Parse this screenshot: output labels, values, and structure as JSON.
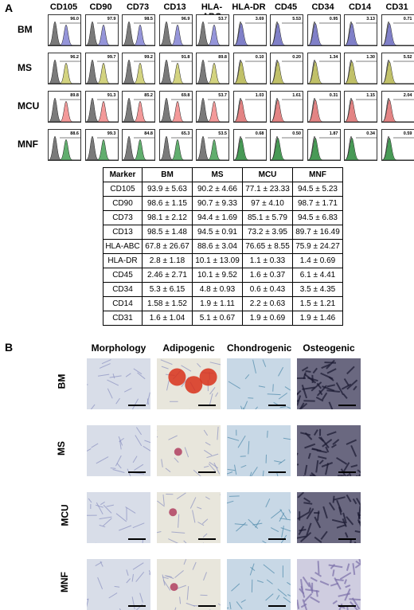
{
  "panel_a": {
    "label": "A",
    "markers": [
      "CD105",
      "CD90",
      "CD73",
      "CD13",
      "HLA-ABC",
      "HLA-DR",
      "CD45",
      "CD34",
      "CD14",
      "CD31"
    ],
    "rows": [
      {
        "name": "BM",
        "color": "#7b7bd0",
        "values": [
          "96.0",
          "97.9",
          "98.5",
          "96.9",
          "53.7",
          "3.69",
          "5.53",
          "0.95",
          "3.13",
          "0.71"
        ]
      },
      {
        "name": "MS",
        "color": "#c8c860",
        "values": [
          "96.2",
          "99.7",
          "99.2",
          "91.8",
          "89.8",
          "0.10",
          "0.20",
          "1.34",
          "1.30",
          "5.52"
        ]
      },
      {
        "name": "MCU",
        "color": "#f08080",
        "values": [
          "89.8",
          "91.3",
          "85.2",
          "69.8",
          "53.7",
          "1.03",
          "1.61",
          "0.31",
          "1.15",
          "2.04"
        ]
      },
      {
        "name": "MNF",
        "color": "#3a9a4a",
        "values": [
          "88.6",
          "99.3",
          "84.8",
          "65.3",
          "53.5",
          "0.68",
          "0.50",
          "1.87",
          "0.34",
          "0.59"
        ]
      }
    ],
    "overlap_markers_from_index": 5
  },
  "table": {
    "headers": [
      "Marker",
      "BM",
      "MS",
      "MCU",
      "MNF"
    ],
    "rows": [
      [
        "CD105",
        "93.9 ± 5.63",
        "90.2 ± 4.66",
        "77.1 ± 23.33",
        "94.5 ± 5.23"
      ],
      [
        "CD90",
        "98.6 ± 1.15",
        "90.7 ± 9.33",
        "97 ± 4.10",
        "98.7 ± 1.71"
      ],
      [
        "CD73",
        "98.1 ± 2.12",
        "94.4 ± 1.69",
        "85.1 ± 5.79",
        "94.5 ± 6.83"
      ],
      [
        "CD13",
        "98.5 ± 1.48",
        "94.5 ± 0.91",
        "73.2 ± 3.95",
        "89.7 ± 16.49"
      ],
      [
        "HLA-ABC",
        "67.8 ± 26.67",
        "88.6 ± 3.04",
        "76.65 ± 8.55",
        "75.9 ± 24.27"
      ],
      [
        "HLA-DR",
        "2.8 ± 1.18",
        "10.1 ± 13.09",
        "1.1 ± 0.33",
        "1.4 ± 0.69"
      ],
      [
        "CD45",
        "2.46 ± 2.71",
        "10.1 ± 9.52",
        "1.6 ± 0.37",
        "6.1 ± 4.41"
      ],
      [
        "CD34",
        "5.3 ± 6.15",
        "4.8 ± 0.93",
        "0.6 ± 0.43",
        "3.5 ± 4.35"
      ],
      [
        "CD14",
        "1.58 ± 1.52",
        "1.9 ± 1.11",
        "2.2 ± 0.63",
        "1.5 ± 1.21"
      ],
      [
        "CD31",
        "1.6 ± 1.04",
        "5.1 ± 0.67",
        "1.9 ± 0.69",
        "1.9 ± 1.46"
      ]
    ]
  },
  "panel_b": {
    "label": "B",
    "columns": [
      "Morphology",
      "Adipogenic",
      "Chondrogenic",
      "Osteogenic"
    ],
    "rows": [
      "BM",
      "MS",
      "MCU",
      "MNF"
    ],
    "colors": {
      "morphology": "#d8dde8",
      "adipogenic": "#e8e6dc",
      "chondrogenic": "#c8d8e6",
      "osteogenic": "#6a6880"
    }
  }
}
